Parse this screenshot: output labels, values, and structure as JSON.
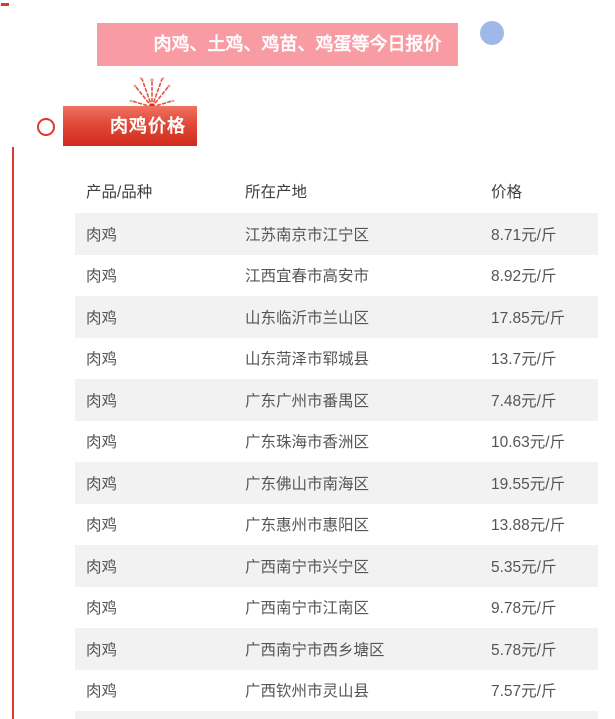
{
  "banner": {
    "title": "肉鸡、土鸡、鸡苗、鸡蛋等今日报价",
    "bg_color": "#f99ba3",
    "text_color": "#ffffff"
  },
  "decor": {
    "blue_dot_color": "#9fb8e9",
    "accent_red": "#e0392b",
    "badge_gradient_top": "#ef7260",
    "badge_gradient_bottom": "#d12a1c",
    "fireworks_icon": "fireworks-burst",
    "row_stripe_color": "#f2f2f2"
  },
  "section": {
    "badge_label": "肉鸡价格"
  },
  "table": {
    "headers": [
      "产品/品种",
      "所在产地",
      "价格"
    ],
    "rows": [
      [
        "肉鸡",
        "江苏南京市江宁区",
        "8.71元/斤"
      ],
      [
        "肉鸡",
        "江西宜春市高安市",
        "8.92元/斤"
      ],
      [
        "肉鸡",
        "山东临沂市兰山区",
        "17.85元/斤"
      ],
      [
        "肉鸡",
        "山东菏泽市郓城县",
        "13.7元/斤"
      ],
      [
        "肉鸡",
        "广东广州市番禺区",
        "7.48元/斤"
      ],
      [
        "肉鸡",
        "广东珠海市香洲区",
        "10.63元/斤"
      ],
      [
        "肉鸡",
        "广东佛山市南海区",
        "19.55元/斤"
      ],
      [
        "肉鸡",
        "广东惠州市惠阳区",
        "13.88元/斤"
      ],
      [
        "肉鸡",
        "广西南宁市兴宁区",
        "5.35元/斤"
      ],
      [
        "肉鸡",
        "广西南宁市江南区",
        "9.78元/斤"
      ],
      [
        "肉鸡",
        "广西南宁市西乡塘区",
        "5.78元/斤"
      ],
      [
        "肉鸡",
        "广西钦州市灵山县",
        "7.57元/斤"
      ]
    ]
  }
}
